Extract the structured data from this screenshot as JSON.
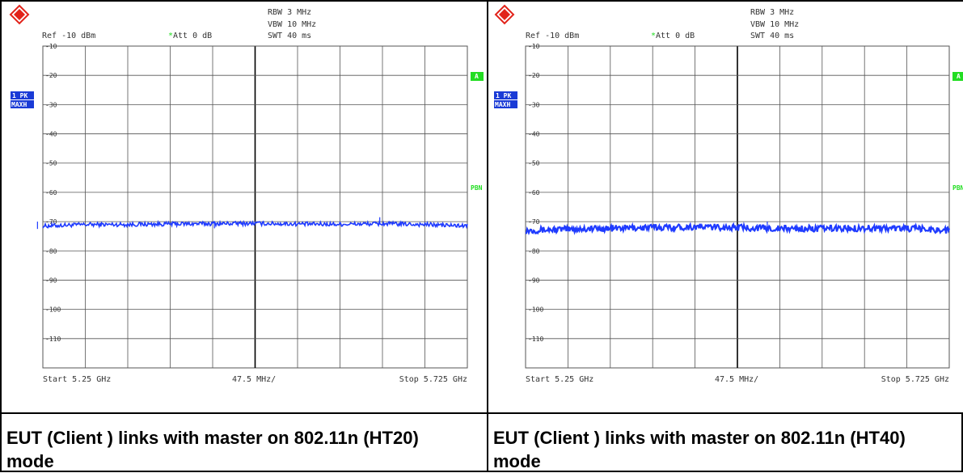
{
  "colors": {
    "trace": "#1f3bff",
    "grid": "#555555",
    "center_line": "#000000",
    "text": "#333333",
    "trace_label_bg": "#1a3bd6",
    "status_green": "#22dd22",
    "logo_red": "#e2231a"
  },
  "icons": {
    "logo": "rohde-schwarz-logo-icon"
  },
  "panels": [
    {
      "header": {
        "rbw": "RBW 3 MHz",
        "vbw": "VBW 10 MHz",
        "swt": "SWT 40 ms",
        "ref": "Ref -10 dBm",
        "att_star": "*",
        "att": "Att  0 dB"
      },
      "trace_label": {
        "line1": "1 PK",
        "line2": "MAXH"
      },
      "side_labels": {
        "a": "A",
        "pbn": "PBN"
      },
      "footer": {
        "start": "Start 5.25 GHz",
        "span": "47.5 MHz/",
        "stop": "Stop 5.725 GHz"
      },
      "caption": "EUT (Client ) links with master on 802.11n (HT20) mode"
    },
    {
      "header": {
        "rbw": "RBW 3 MHz",
        "vbw": "VBW 10 MHz",
        "swt": "SWT 40 ms",
        "ref": "Ref -10 dBm",
        "att_star": "*",
        "att": "Att  0 dB"
      },
      "trace_label": {
        "line1": "1 PK",
        "line2": "MAXH"
      },
      "side_labels": {
        "a": "A",
        "pbn": "PBN"
      },
      "footer": {
        "start": "Start 5.25 GHz",
        "span": "47.5 MHz/",
        "stop": "Stop 5.725 GHz"
      },
      "caption": "EUT (Client ) links with master on 802.11n (HT40) mode"
    }
  ],
  "chart_data": [
    {
      "type": "line",
      "y_ticks": [
        "-10",
        "-20",
        "-30",
        "-40",
        "-50",
        "-60",
        "-70",
        "-80",
        "-90",
        "-100",
        "-110"
      ],
      "ylim": [
        -120,
        -10
      ],
      "xlim": [
        5.25,
        5.725
      ],
      "x_unit": "GHz",
      "grid": true,
      "series": [
        {
          "x": [
            5.25,
            5.2975,
            5.345,
            5.3925,
            5.44,
            5.4875,
            5.535,
            5.5825,
            5.63,
            5.6775,
            5.725
          ],
          "values": [
            -71.5,
            -71.0,
            -71.0,
            -70.8,
            -70.7,
            -70.6,
            -70.8,
            -70.9,
            -70.7,
            -71.0,
            -71.5
          ]
        }
      ],
      "spikes": [
        {
          "x": 5.244,
          "y": -70.0
        },
        {
          "x": 5.442,
          "y": -69.8
        },
        {
          "x": 5.627,
          "y": -68.5
        }
      ]
    },
    {
      "type": "line",
      "y_ticks": [
        "-10",
        "-20",
        "-30",
        "-40",
        "-50",
        "-60",
        "-70",
        "-80",
        "-90",
        "-100",
        "-110"
      ],
      "ylim": [
        -120,
        -10
      ],
      "xlim": [
        5.25,
        5.725
      ],
      "x_unit": "GHz",
      "grid": true,
      "series": [
        {
          "x": [
            5.25,
            5.2975,
            5.345,
            5.3925,
            5.44,
            5.4875,
            5.535,
            5.5825,
            5.63,
            5.6775,
            5.725
          ],
          "values": [
            -73.0,
            -72.6,
            -72.3,
            -72.0,
            -71.8,
            -72.0,
            -72.4,
            -72.4,
            -72.2,
            -72.3,
            -73.0
          ]
        }
      ],
      "spikes": [
        {
          "x": 5.521,
          "y": -70.0
        }
      ]
    }
  ]
}
